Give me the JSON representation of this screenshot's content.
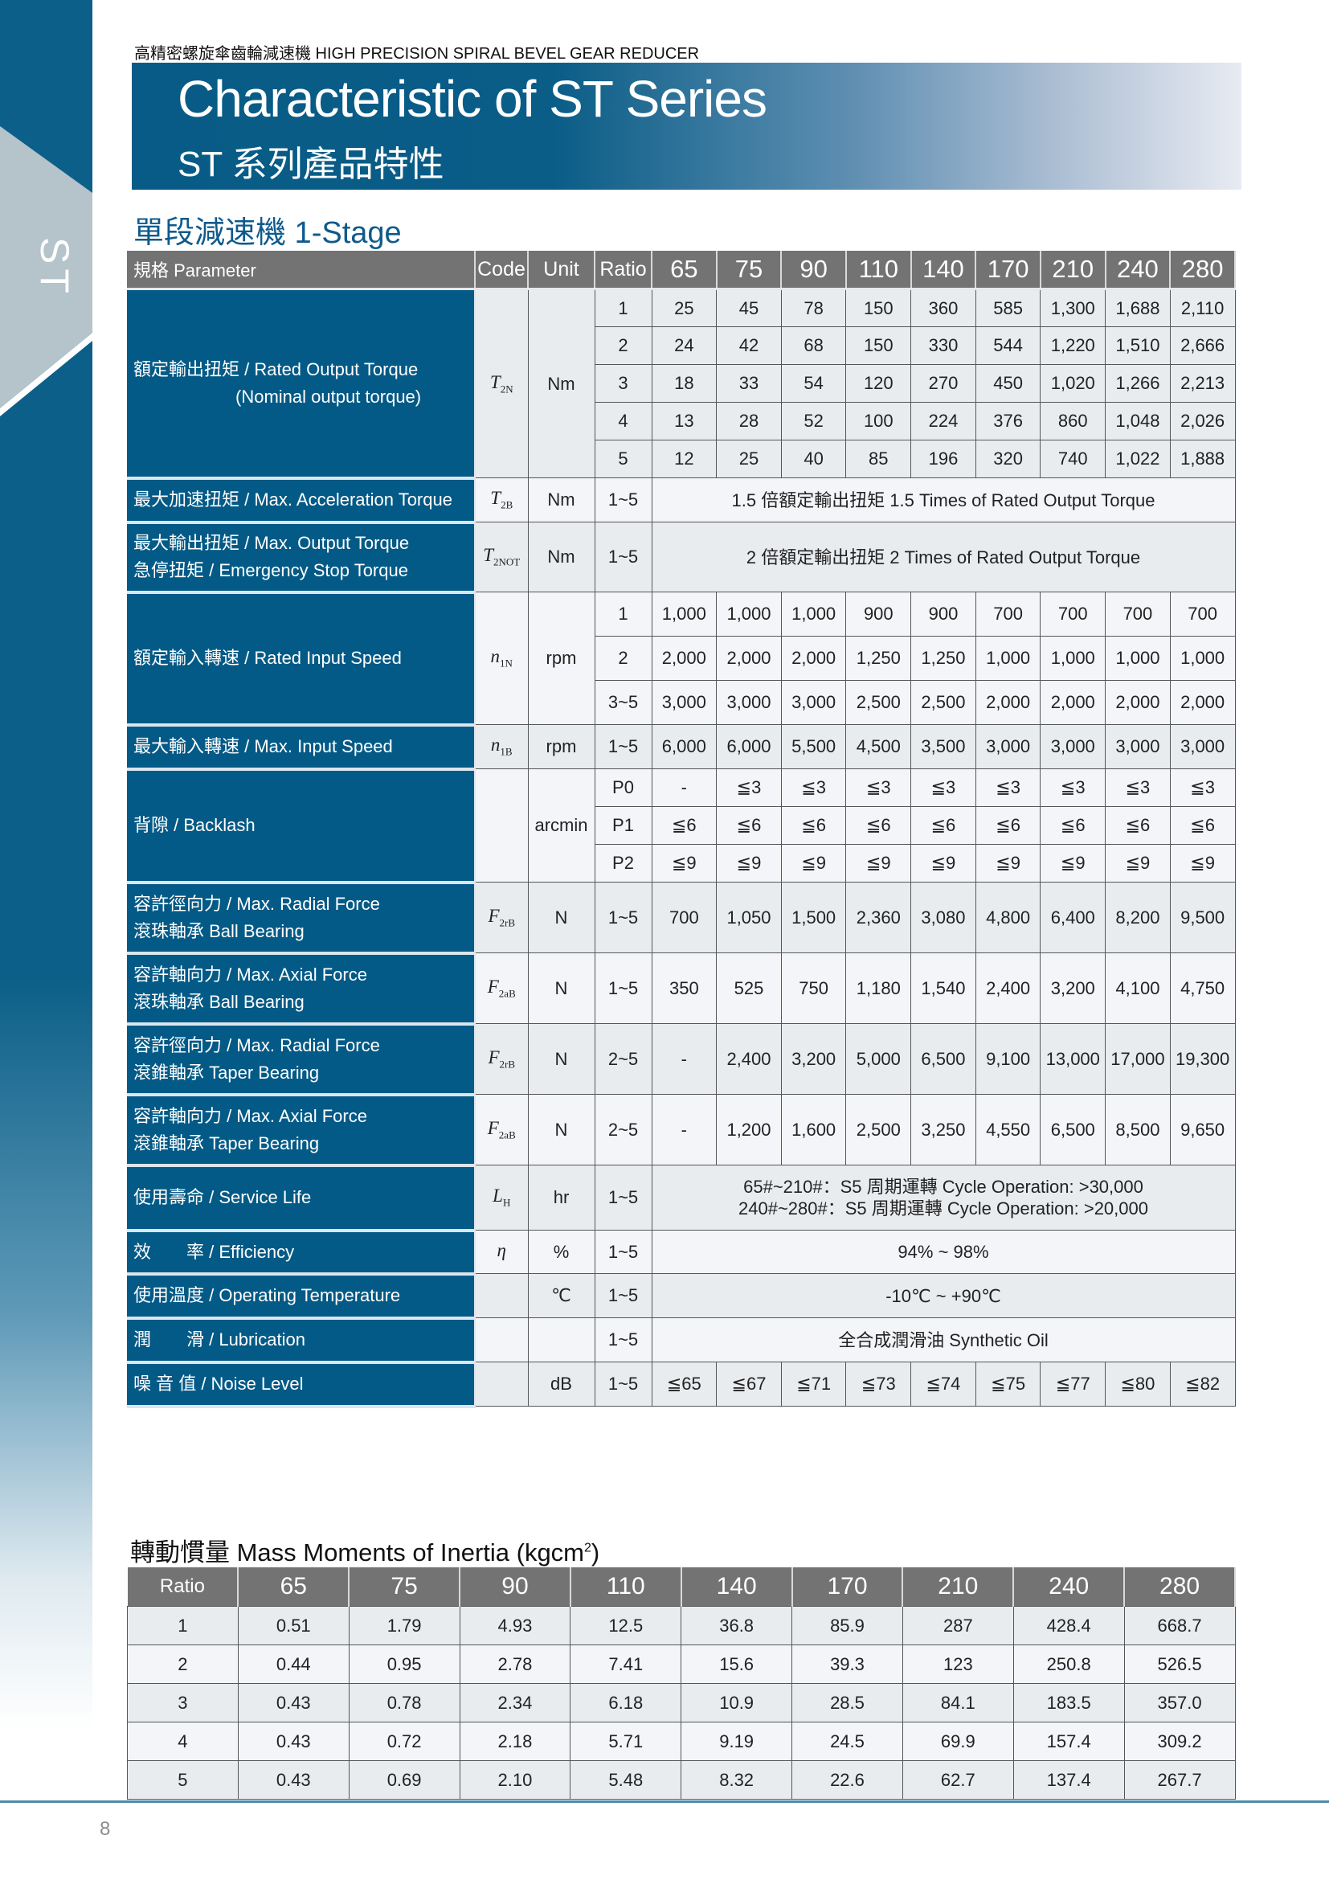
{
  "side_tab": "ST",
  "header_line": "高精密螺旋傘齒輪減速機  HIGH PRECISION SPIRAL BEVEL GEAR REDUCER",
  "banner": {
    "title": "Characteristic of ST Series",
    "subtitle": "ST 系列產品特性"
  },
  "stage_title": "單段減速機 1-Stage",
  "colors": {
    "brand_blue": "#045a86",
    "header_gray": "#737373",
    "accent_line": "#4d8aa8"
  },
  "spec_table": {
    "headers": {
      "param": "規格 Parameter",
      "code": "Code",
      "unit": "Unit",
      "ratio": "Ratio",
      "sizes": [
        "65",
        "75",
        "90",
        "110",
        "140",
        "170",
        "210",
        "240",
        "280"
      ]
    },
    "rows": [
      {
        "param": [
          "額定輸出扭矩 / Rated Output Torque",
          "(Nominal output torque)"
        ],
        "code": {
          "sym": "T",
          "sub": "2N"
        },
        "unit": "Nm",
        "sub_rows": [
          {
            "ratio": "1",
            "values": [
              "25",
              "45",
              "78",
              "150",
              "360",
              "585",
              "1,300",
              "1,688",
              "2,110"
            ]
          },
          {
            "ratio": "2",
            "values": [
              "24",
              "42",
              "68",
              "150",
              "330",
              "544",
              "1,220",
              "1,510",
              "2,666"
            ]
          },
          {
            "ratio": "3",
            "values": [
              "18",
              "33",
              "54",
              "120",
              "270",
              "450",
              "1,020",
              "1,266",
              "2,213"
            ]
          },
          {
            "ratio": "4",
            "values": [
              "13",
              "28",
              "52",
              "100",
              "224",
              "376",
              "860",
              "1,048",
              "2,026"
            ]
          },
          {
            "ratio": "5",
            "values": [
              "12",
              "25",
              "40",
              "85",
              "196",
              "320",
              "740",
              "1,022",
              "1,888"
            ]
          }
        ]
      },
      {
        "param": [
          "最大加速扭矩 / Max. Acceleration Torque"
        ],
        "code": {
          "sym": "T",
          "sub": "2B"
        },
        "unit": "Nm",
        "ratio": "1~5",
        "span_text": [
          "1.5 倍額定輸出扭矩  1.5 Times of Rated Output Torque"
        ]
      },
      {
        "param": [
          "最大輸出扭矩 / Max. Output Torque",
          "急停扭矩 / Emergency Stop Torque"
        ],
        "code": {
          "sym": "T",
          "sub": "2NOT"
        },
        "unit": "Nm",
        "ratio": "1~5",
        "span_text": [
          "2 倍額定輸出扭矩 2 Times of Rated Output Torque"
        ]
      },
      {
        "param": [
          "額定輸入轉速 / Rated Input Speed"
        ],
        "code": {
          "sym": "n",
          "sub": "1N"
        },
        "unit": "rpm",
        "sub_rows": [
          {
            "ratio": "1",
            "values": [
              "1,000",
              "1,000",
              "1,000",
              "900",
              "900",
              "700",
              "700",
              "700",
              "700"
            ]
          },
          {
            "ratio": "2",
            "values": [
              "2,000",
              "2,000",
              "2,000",
              "1,250",
              "1,250",
              "1,000",
              "1,000",
              "1,000",
              "1,000"
            ]
          },
          {
            "ratio": "3~5",
            "values": [
              "3,000",
              "3,000",
              "3,000",
              "2,500",
              "2,500",
              "2,000",
              "2,000",
              "2,000",
              "2,000"
            ]
          }
        ]
      },
      {
        "param": [
          "最大輸入轉速 / Max. Input Speed"
        ],
        "code": {
          "sym": "n",
          "sub": "1B"
        },
        "unit": "rpm",
        "ratio": "1~5",
        "values": [
          "6,000",
          "6,000",
          "5,500",
          "4,500",
          "3,500",
          "3,000",
          "3,000",
          "3,000",
          "3,000"
        ]
      },
      {
        "param": [
          "背隙 / Backlash"
        ],
        "code": null,
        "unit": "arcmin",
        "sub_rows": [
          {
            "ratio": "P0",
            "values": [
              "-",
              "≦3",
              "≦3",
              "≦3",
              "≦3",
              "≦3",
              "≦3",
              "≦3",
              "≦3"
            ]
          },
          {
            "ratio": "P1",
            "values": [
              "≦6",
              "≦6",
              "≦6",
              "≦6",
              "≦6",
              "≦6",
              "≦6",
              "≦6",
              "≦6"
            ]
          },
          {
            "ratio": "P2",
            "values": [
              "≦9",
              "≦9",
              "≦9",
              "≦9",
              "≦9",
              "≦9",
              "≦9",
              "≦9",
              "≦9"
            ]
          }
        ]
      },
      {
        "param": [
          "容許徑向力 / Max. Radial Force",
          "滾珠軸承 Ball Bearing"
        ],
        "code": {
          "sym": "F",
          "sub": "2rB"
        },
        "unit": "N",
        "ratio": "1~5",
        "values": [
          "700",
          "1,050",
          "1,500",
          "2,360",
          "3,080",
          "4,800",
          "6,400",
          "8,200",
          "9,500"
        ]
      },
      {
        "param": [
          "容許軸向力 / Max. Axial Force",
          "滾珠軸承 Ball Bearing"
        ],
        "code": {
          "sym": "F",
          "sub": "2aB"
        },
        "unit": "N",
        "ratio": "1~5",
        "values": [
          "350",
          "525",
          "750",
          "1,180",
          "1,540",
          "2,400",
          "3,200",
          "4,100",
          "4,750"
        ]
      },
      {
        "param": [
          "容許徑向力 / Max. Radial Force",
          "滾錐軸承 Taper Bearing"
        ],
        "code": {
          "sym": "F",
          "sub": "2rB"
        },
        "unit": "N",
        "ratio": "2~5",
        "values": [
          "-",
          "2,400",
          "3,200",
          "5,000",
          "6,500",
          "9,100",
          "13,000",
          "17,000",
          "19,300"
        ]
      },
      {
        "param": [
          "容許軸向力 / Max. Axial Force",
          "滾錐軸承 Taper Bearing"
        ],
        "code": {
          "sym": "F",
          "sub": "2aB"
        },
        "unit": "N",
        "ratio": "2~5",
        "values": [
          "-",
          "1,200",
          "1,600",
          "2,500",
          "3,250",
          "4,550",
          "6,500",
          "8,500",
          "9,650"
        ]
      },
      {
        "param": [
          "使用壽命 / Service Life"
        ],
        "code": {
          "sym": "L",
          "sub": "H"
        },
        "unit": "hr",
        "ratio": "1~5",
        "span_text": [
          "65#~210#：S5 周期運轉 Cycle Operation: >30,000",
          "240#~280#：S5 周期運轉 Cycle Operation: >20,000"
        ]
      },
      {
        "param": [
          "效　　率 / Efficiency"
        ],
        "code": {
          "sym": "η",
          "sub": ""
        },
        "unit": "%",
        "ratio": "1~5",
        "span_text": [
          "94% ~ 98%"
        ]
      },
      {
        "param": [
          "使用溫度 / Operating Temperature"
        ],
        "code": null,
        "unit": "℃",
        "ratio": "1~5",
        "span_text": [
          "-10℃ ~ +90℃"
        ]
      },
      {
        "param": [
          "潤　　滑 / Lubrication"
        ],
        "code": null,
        "unit": "",
        "ratio": "1~5",
        "span_text": [
          "全合成潤滑油 Synthetic Oil"
        ]
      },
      {
        "param": [
          "噪 音 值 / Noise Level"
        ],
        "code": null,
        "unit": "dB",
        "ratio": "1~5",
        "values": [
          "≦65",
          "≦67",
          "≦71",
          "≦73",
          "≦74",
          "≦75",
          "≦77",
          "≦80",
          "≦82"
        ]
      }
    ]
  },
  "inertia": {
    "title": "轉動慣量 Mass Moments of Inertia (kgcm",
    "title_sup": "2",
    "title_end": ")",
    "headers": [
      "Ratio",
      "65",
      "75",
      "90",
      "110",
      "140",
      "170",
      "210",
      "240",
      "280"
    ],
    "rows": [
      [
        "1",
        "0.51",
        "1.79",
        "4.93",
        "12.5",
        "36.8",
        "85.9",
        "287",
        "428.4",
        "668.7"
      ],
      [
        "2",
        "0.44",
        "0.95",
        "2.78",
        "7.41",
        "15.6",
        "39.3",
        "123",
        "250.8",
        "526.5"
      ],
      [
        "3",
        "0.43",
        "0.78",
        "2.34",
        "6.18",
        "10.9",
        "28.5",
        "84.1",
        "183.5",
        "357.0"
      ],
      [
        "4",
        "0.43",
        "0.72",
        "2.18",
        "5.71",
        "9.19",
        "24.5",
        "69.9",
        "157.4",
        "309.2"
      ],
      [
        "5",
        "0.43",
        "0.69",
        "2.10",
        "5.48",
        "8.32",
        "22.6",
        "62.7",
        "137.4",
        "267.7"
      ]
    ]
  },
  "page_number": "8"
}
